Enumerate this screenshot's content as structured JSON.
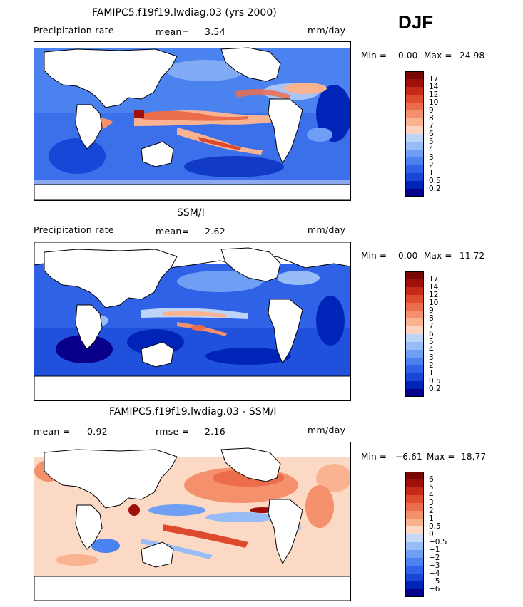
{
  "season": "DJF",
  "palettes": {
    "precip": [
      "#08008a",
      "#0024b8",
      "#1846d6",
      "#2f62e6",
      "#4a82f0",
      "#6f9ff4",
      "#98bcf6",
      "#bed4f7",
      "#f4f1ee",
      "#fcd3be",
      "#f9b391",
      "#f5906c",
      "#ec6d4b",
      "#de4a2e",
      "#c52a17",
      "#a0100b",
      "#780606"
    ],
    "diff": [
      "#08008a",
      "#0024b8",
      "#1846d6",
      "#2f62e6",
      "#4a82f0",
      "#6f9ff4",
      "#98bcf6",
      "#c5d9f7",
      "#f4f1ee",
      "#fbd9c4",
      "#f9b391",
      "#f5906c",
      "#ec6d4b",
      "#de4a2e",
      "#c52a17",
      "#a0100b",
      "#780606"
    ]
  },
  "panels": [
    {
      "title": "FAMIPC5.f19f19.lwdiag.03 (yrs 2000)",
      "left_label": "Precipitation rate",
      "stat_label": "mean=",
      "stat_value": "3.54",
      "stat2_label": "",
      "stat2_value": "",
      "units": "mm/day",
      "min_label": "Min =",
      "min_value": "0.00",
      "max_label": "Max =",
      "max_value": "24.98",
      "colorbar_palette": "precip",
      "colorbar_levels": [
        "17",
        "14",
        "12",
        "10",
        "9",
        "8",
        "7",
        "6",
        "5",
        "4",
        "3",
        "2",
        "1",
        "0.5",
        "0.2"
      ]
    },
    {
      "title": "SSM/I",
      "left_label": "Precipitation rate",
      "stat_label": "mean=",
      "stat_value": "2.62",
      "stat2_label": "",
      "stat2_value": "",
      "units": "mm/day",
      "min_label": "Min =",
      "min_value": "0.00",
      "max_label": "Max =",
      "max_value": "11.72",
      "colorbar_palette": "precip",
      "colorbar_levels": [
        "17",
        "14",
        "12",
        "10",
        "9",
        "8",
        "7",
        "6",
        "5",
        "4",
        "3",
        "2",
        "1",
        "0.5",
        "0.2"
      ]
    },
    {
      "title": "FAMIPC5.f19f19.lwdiag.03 - SSM/I",
      "left_label": "",
      "stat_label": "mean =",
      "stat_value": "0.92",
      "stat2_label": "rmse =",
      "stat2_value": "2.16",
      "units": "mm/day",
      "min_label": "Min =",
      "min_value": "−6.61",
      "max_label": "Max =",
      "max_value": "18.77",
      "colorbar_palette": "diff",
      "colorbar_levels": [
        "6",
        "5",
        "4",
        "3",
        "2",
        "1",
        "0.5",
        "0",
        "−0.5",
        "−1",
        "−2",
        "−3",
        "−4",
        "−5",
        "−6"
      ]
    }
  ]
}
